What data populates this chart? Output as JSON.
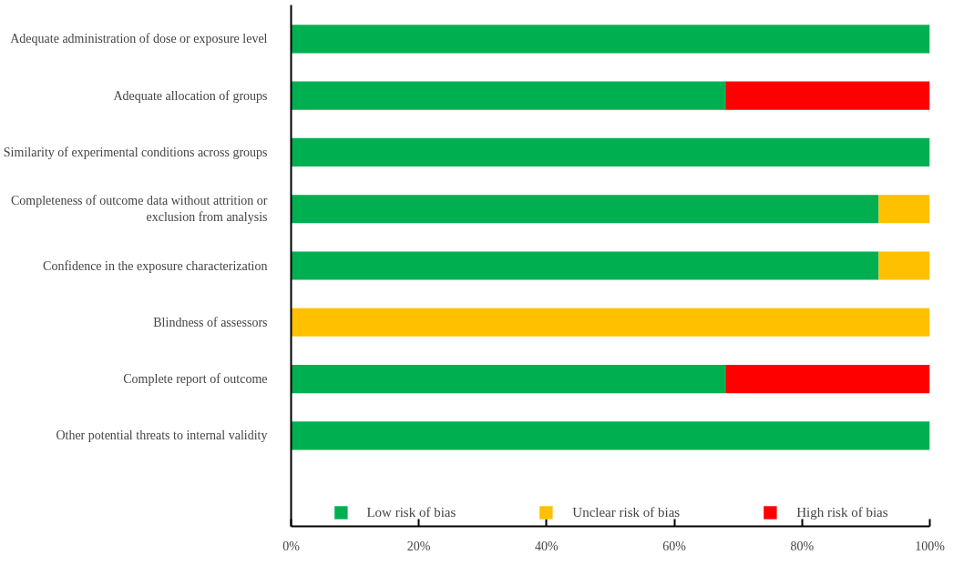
{
  "chart_data": {
    "type": "bar",
    "orientation": "horizontal",
    "stacked": true,
    "categories": [
      "Adequate administration of dose or exposure level",
      "Adequate allocation of groups",
      "Similarity of experimental conditions across groups",
      "Completeness of outcome data without attrition or exclusion from analysis",
      "Confidence in the exposure characterization",
      "Blindness of assessors",
      "Complete report of outcome",
      "Other potential threats to internal validity"
    ],
    "series": [
      {
        "name": "Low risk of bias",
        "color": "#00b050",
        "values": [
          100,
          68,
          100,
          92,
          92,
          0,
          68,
          100
        ]
      },
      {
        "name": "Unclear risk of bias",
        "color": "#ffc000",
        "values": [
          0,
          0,
          0,
          8,
          8,
          100,
          0,
          0
        ]
      },
      {
        "name": "High risk of bias",
        "color": "#ff0000",
        "values": [
          0,
          32,
          0,
          0,
          0,
          0,
          32,
          0
        ]
      }
    ],
    "xlim": [
      0,
      100
    ],
    "xticks": [
      {
        "value": 0,
        "label": "0%"
      },
      {
        "value": 20,
        "label": "20%"
      },
      {
        "value": 40,
        "label": "40%"
      },
      {
        "value": 60,
        "label": "60%"
      },
      {
        "value": 80,
        "label": "80%"
      },
      {
        "value": 100,
        "label": "100%"
      }
    ],
    "grid": false,
    "legend": "bottom"
  }
}
